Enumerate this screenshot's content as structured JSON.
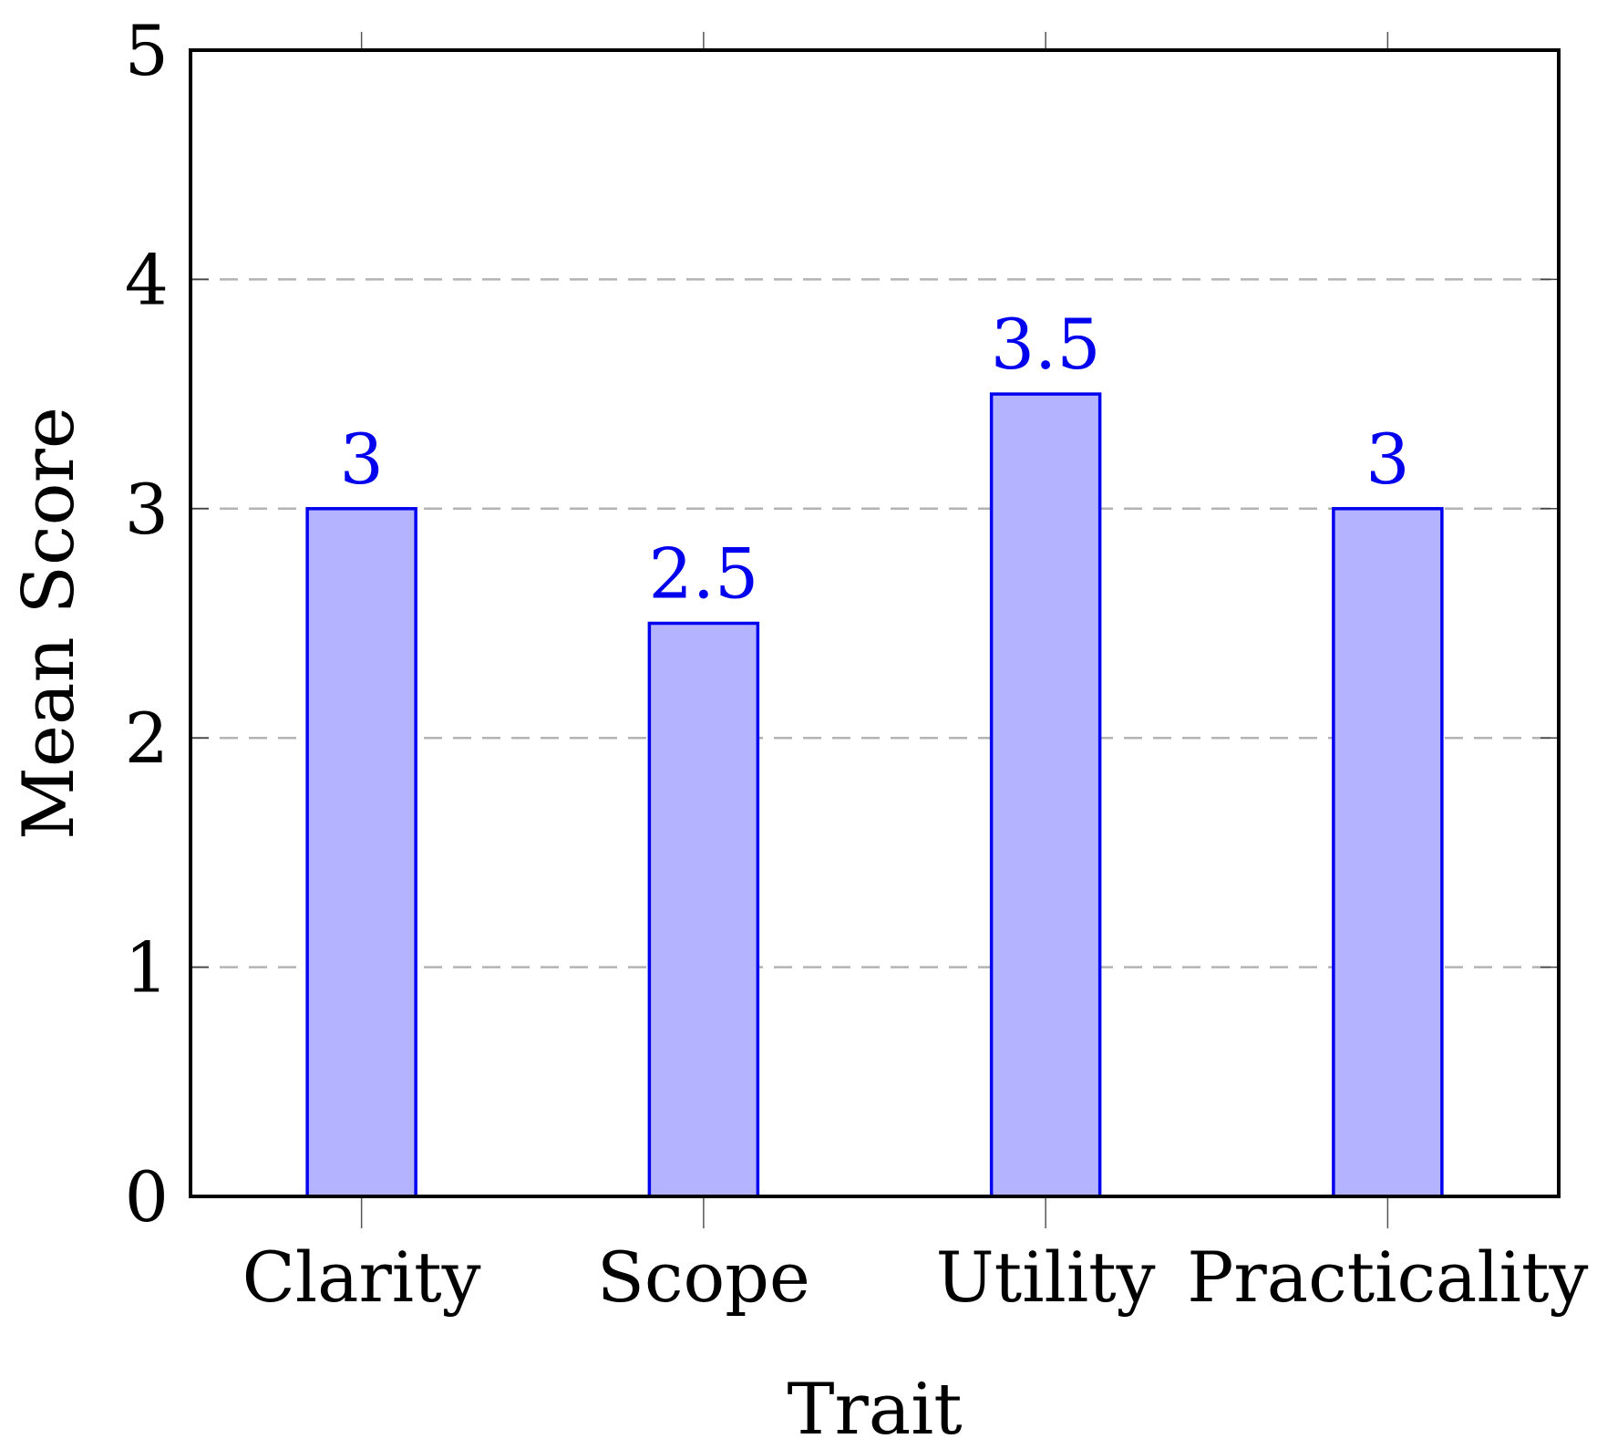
{
  "chart_data": {
    "type": "bar",
    "categories": [
      "Clarity",
      "Scope",
      "Utility",
      "Practicality"
    ],
    "values": [
      3,
      2.5,
      3.5,
      3
    ],
    "data_labels": [
      "3",
      "2.5",
      "3.5",
      "3"
    ],
    "xlabel": "Trait",
    "ylabel": "Mean Score",
    "ylim": [
      0,
      5
    ],
    "yticks": [
      0,
      1,
      2,
      3,
      4,
      5
    ],
    "ytick_labels": [
      "0",
      "1",
      "2",
      "3",
      "4",
      "5"
    ],
    "grid": "horizontal-dashed",
    "legend": "none",
    "colors": {
      "bar_fill": "#b3b3ff",
      "bar_stroke": "#0000ee",
      "label": "#0000ee",
      "grid": "#b3b3b3",
      "axis": "#000000"
    }
  }
}
